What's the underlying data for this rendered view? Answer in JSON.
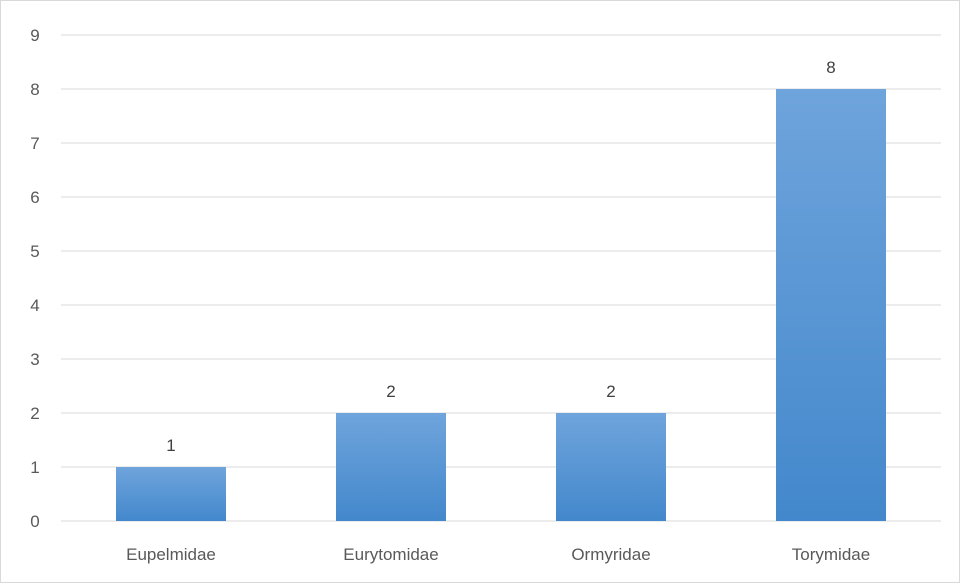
{
  "chart_data": {
    "type": "bar",
    "title": "",
    "xlabel": "",
    "ylabel": "",
    "categories": [
      "Eupelmidae",
      "Eurytomidae",
      "Ormyridae",
      "Torymidae"
    ],
    "values": [
      1,
      2,
      2,
      8
    ],
    "ylim": [
      0,
      9
    ],
    "yticks": [
      "0",
      "1",
      "2",
      "3",
      "4",
      "5",
      "6",
      "7",
      "8",
      "9"
    ],
    "data_labels": [
      "1",
      "2",
      "2",
      "8"
    ],
    "grid": true,
    "legend": "none",
    "bar_color_top": "#6fa4dc",
    "bar_color_bottom": "#4388cc"
  }
}
